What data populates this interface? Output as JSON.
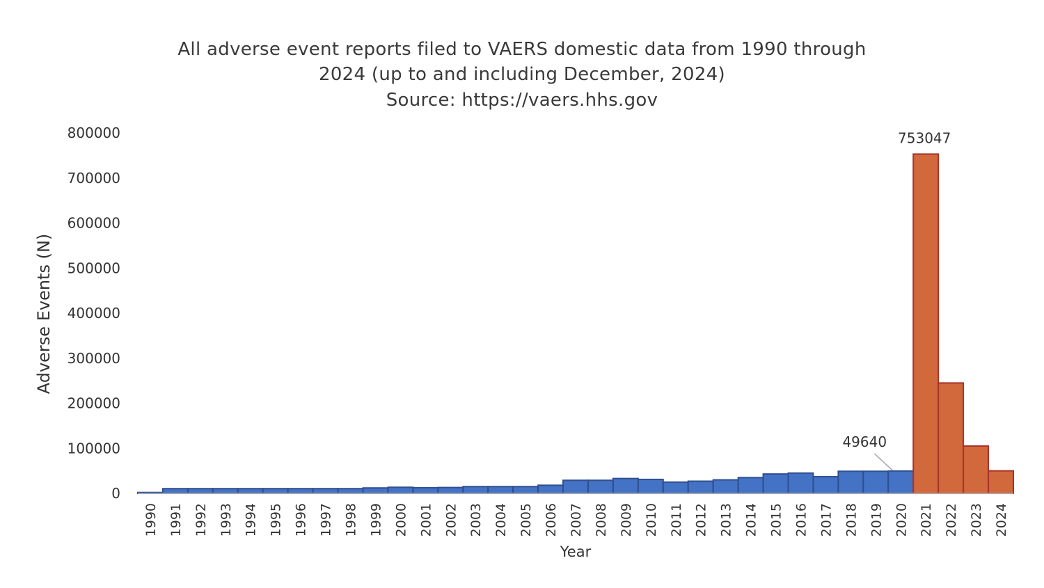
{
  "chart_data": {
    "type": "bar",
    "title_lines": [
      "All adverse event reports filed to VAERS domestic data from 1990 through",
      "2024 (up to and including December, 2024)",
      "Source: https://vaers.hhs.gov"
    ],
    "xlabel": "Year",
    "ylabel": "Adverse Events (N)",
    "ylim": [
      0,
      800000
    ],
    "yticks": [
      "0",
      "100000",
      "200000",
      "300000",
      "400000",
      "500000",
      "600000",
      "700000",
      "800000"
    ],
    "grid": false,
    "legend": "none",
    "categories": [
      "1990",
      "1991",
      "1992",
      "1993",
      "1994",
      "1995",
      "1996",
      "1997",
      "1998",
      "1999",
      "2000",
      "2001",
      "2002",
      "2003",
      "2004",
      "2005",
      "2006",
      "2007",
      "2008",
      "2009",
      "2010",
      "2011",
      "2012",
      "2013",
      "2014",
      "2015",
      "2016",
      "2017",
      "2018",
      "2019",
      "2020",
      "2021",
      "2022",
      "2023",
      "2024"
    ],
    "values": [
      2000,
      10500,
      10500,
      10500,
      10500,
      10500,
      10500,
      10500,
      10500,
      12000,
      13500,
      12500,
      13000,
      15000,
      15000,
      15000,
      18000,
      29000,
      29000,
      33000,
      31000,
      25000,
      27000,
      30000,
      35000,
      43000,
      45000,
      37000,
      49000,
      49000,
      49640,
      753047,
      245000,
      105000,
      50000
    ],
    "colors": [
      "#4472c4",
      "#4472c4",
      "#4472c4",
      "#4472c4",
      "#4472c4",
      "#4472c4",
      "#4472c4",
      "#4472c4",
      "#4472c4",
      "#4472c4",
      "#4472c4",
      "#4472c4",
      "#4472c4",
      "#4472c4",
      "#4472c4",
      "#4472c4",
      "#4472c4",
      "#4472c4",
      "#4472c4",
      "#4472c4",
      "#4472c4",
      "#4472c4",
      "#4472c4",
      "#4472c4",
      "#4472c4",
      "#4472c4",
      "#4472c4",
      "#4472c4",
      "#4472c4",
      "#4472c4",
      "#4472c4",
      "#d1693c",
      "#d1693c",
      "#d1693c",
      "#d1693c"
    ],
    "bar_edge_colors": {
      "blue": "#2f4f8f",
      "orange": "#a8322a"
    },
    "annotations": [
      {
        "category": "2021",
        "value": 753047,
        "text": "753047"
      },
      {
        "category": "2020",
        "value": 49640,
        "text": "49640"
      }
    ]
  }
}
